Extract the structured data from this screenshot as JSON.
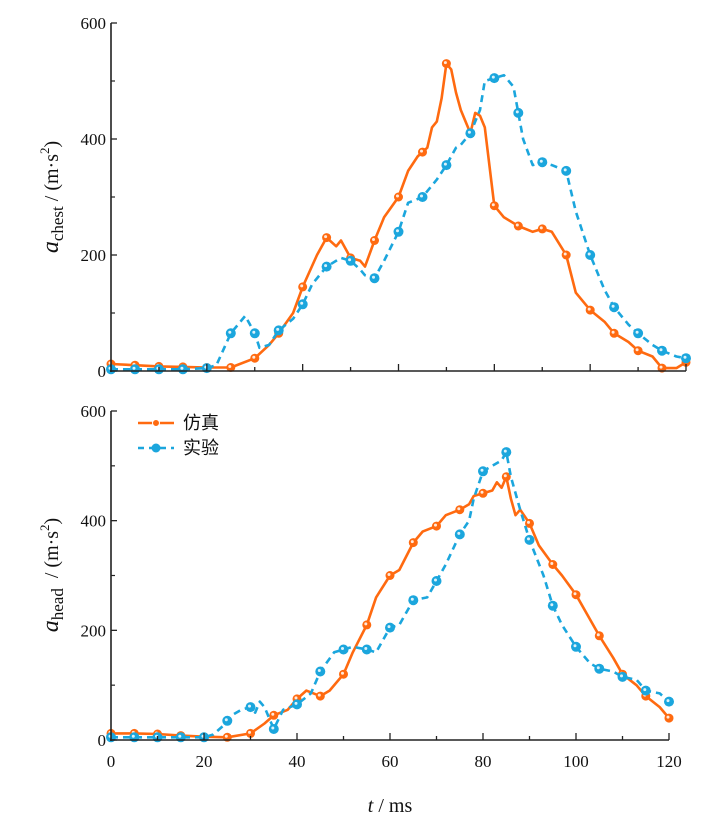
{
  "colors": {
    "sim": "#ff6a10",
    "exp": "#1ba6dd",
    "axis": "#222222"
  },
  "chart_data": [
    {
      "type": "line",
      "id": "chest",
      "ylabel_main": "a",
      "ylabel_sub": "chest",
      "ylabel_unit": " / (m·s",
      "ylabel_sup": "2",
      "ylabel_close": ")",
      "xlim": [
        0,
        120
      ],
      "ylim": [
        0,
        600
      ],
      "yticks": [
        0,
        200,
        400,
        600
      ],
      "yticks_labels": [
        "0",
        "200",
        "400",
        "600"
      ],
      "series": [
        {
          "name": "仿真",
          "x": [
            0,
            5,
            10,
            15,
            20,
            25,
            30,
            33,
            35,
            38,
            40,
            43,
            45,
            47,
            48,
            50,
            52,
            53,
            55,
            57,
            60,
            62,
            64,
            66,
            67,
            68,
            69,
            70,
            71,
            72,
            73,
            74,
            75,
            76,
            77,
            78,
            80,
            82,
            85,
            88,
            90,
            92,
            95,
            97,
            100,
            103,
            105,
            108,
            110,
            113,
            115,
            118,
            120,
            123
          ],
          "y": [
            12,
            10,
            8,
            7,
            6,
            6,
            22,
            45,
            65,
            100,
            145,
            200,
            230,
            215,
            225,
            195,
            190,
            180,
            225,
            265,
            300,
            345,
            370,
            385,
            420,
            430,
            470,
            530,
            520,
            480,
            450,
            430,
            410,
            445,
            440,
            420,
            285,
            265,
            250,
            240,
            245,
            240,
            200,
            135,
            105,
            85,
            65,
            50,
            35,
            25,
            5,
            5,
            15,
            20
          ]
        },
        {
          "name": "实验",
          "x": [
            0,
            5,
            10,
            15,
            20,
            22,
            25,
            27,
            28,
            30,
            31,
            33,
            35,
            38,
            40,
            42,
            45,
            47,
            48,
            50,
            52,
            53,
            55,
            57,
            60,
            62,
            65,
            68,
            70,
            72,
            73,
            74,
            75,
            77,
            78,
            80,
            82,
            84,
            86,
            88,
            90,
            92,
            95,
            97,
            100,
            103,
            105,
            108,
            110,
            113,
            115,
            118,
            120,
            123
          ],
          "y": [
            3,
            3,
            3,
            3,
            5,
            10,
            65,
            85,
            95,
            65,
            40,
            45,
            70,
            90,
            115,
            150,
            180,
            190,
            195,
            190,
            175,
            165,
            160,
            190,
            240,
            290,
            300,
            330,
            355,
            385,
            390,
            400,
            410,
            450,
            500,
            505,
            510,
            490,
            400,
            355,
            360,
            355,
            345,
            275,
            200,
            140,
            110,
            80,
            65,
            45,
            35,
            25,
            22,
            15
          ]
        }
      ]
    },
    {
      "type": "line",
      "id": "head",
      "ylabel_main": "a",
      "ylabel_sub": "head",
      "ylabel_unit": "  / (m·s",
      "ylabel_sup": "2",
      "ylabel_close": ")",
      "xlabel_t": "t",
      "xlabel_unit": " / ms",
      "xlim": [
        0,
        120
      ],
      "ylim": [
        0,
        600
      ],
      "xticks": [
        0,
        20,
        40,
        60,
        80,
        100,
        120
      ],
      "xticks_labels": [
        "0",
        "20",
        "40",
        "60",
        "80",
        "100",
        "120"
      ],
      "yticks": [
        0,
        200,
        400,
        600
      ],
      "yticks_labels": [
        "0",
        "200",
        "400",
        "600"
      ],
      "legend": {
        "placement": "top-left",
        "entries": [
          "仿真",
          "实验"
        ]
      },
      "series": [
        {
          "name": "仿真",
          "x": [
            0,
            5,
            10,
            15,
            20,
            25,
            30,
            33,
            35,
            38,
            40,
            42,
            45,
            47,
            50,
            52,
            55,
            57,
            60,
            62,
            65,
            67,
            70,
            72,
            75,
            77,
            78,
            80,
            82,
            83,
            84,
            85,
            86,
            87,
            88,
            90,
            92,
            95,
            97,
            100,
            103,
            105,
            108,
            110,
            113,
            115,
            118,
            120
          ],
          "y": [
            12,
            12,
            11,
            8,
            6,
            5,
            12,
            30,
            45,
            55,
            75,
            90,
            80,
            90,
            120,
            160,
            210,
            260,
            300,
            310,
            360,
            380,
            390,
            410,
            420,
            430,
            445,
            450,
            455,
            470,
            460,
            480,
            440,
            410,
            420,
            395,
            355,
            320,
            300,
            265,
            220,
            190,
            150,
            120,
            100,
            80,
            60,
            40
          ]
        },
        {
          "name": "实验",
          "x": [
            0,
            5,
            10,
            15,
            20,
            22,
            24,
            25,
            26,
            28,
            30,
            31,
            32,
            33,
            35,
            37,
            40,
            43,
            45,
            48,
            50,
            52,
            55,
            57,
            60,
            62,
            65,
            68,
            70,
            72,
            75,
            77,
            78,
            80,
            82,
            84,
            85,
            86,
            88,
            90,
            93,
            95,
            97,
            100,
            103,
            105,
            108,
            110,
            113,
            115,
            118,
            120
          ],
          "y": [
            5,
            5,
            5,
            5,
            5,
            10,
            25,
            35,
            45,
            55,
            60,
            50,
            70,
            60,
            20,
            55,
            65,
            85,
            125,
            160,
            165,
            170,
            165,
            160,
            205,
            210,
            255,
            260,
            290,
            320,
            375,
            400,
            440,
            490,
            500,
            510,
            525,
            480,
            420,
            365,
            300,
            245,
            210,
            170,
            140,
            130,
            125,
            115,
            110,
            90,
            85,
            70
          ]
        }
      ]
    }
  ]
}
